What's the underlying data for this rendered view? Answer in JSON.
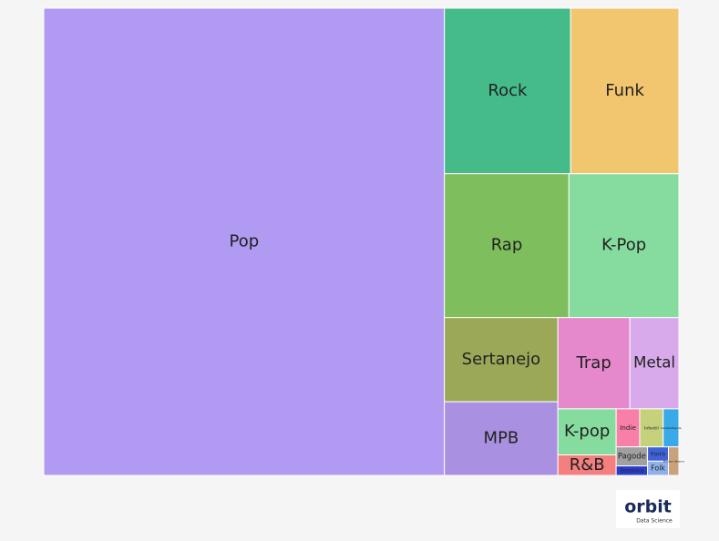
{
  "chart_data": {
    "type": "treemap",
    "categories": [
      "Pop",
      "Rock",
      "Funk",
      "Rap",
      "K-Pop",
      "Sertanejo",
      "MPB",
      "Trap",
      "Metal",
      "K-pop",
      "R&B",
      "Indie",
      "Infantil",
      "Samba/Pagode",
      "Pagode",
      "Eletrônica",
      "Forró",
      "Folk",
      "Música clássica"
    ],
    "values": [
      62.7,
      7.0,
      6.0,
      6.0,
      5.3,
      3.2,
      2.8,
      2.2,
      1.5,
      0.9,
      0.4,
      0.3,
      0.3,
      0.2,
      0.2,
      0.1,
      0.1,
      0.1,
      0.1
    ],
    "colors": [
      "#b09af2",
      "#45bb8a",
      "#f2c56f",
      "#7fbe5c",
      "#86dc9e",
      "#9aa857",
      "#a990e0",
      "#e588cc",
      "#d9aaeb",
      "#86dc9e",
      "#f47f7f",
      "#f77fa8",
      "#c5d27b",
      "#3aa9e8",
      "#a0a0a0",
      "#2a3fc8",
      "#3f62d8",
      "#8fb0ea",
      "#c8a27a"
    ]
  },
  "logo": {
    "name": "orbit",
    "tagline": "Data Science"
  }
}
